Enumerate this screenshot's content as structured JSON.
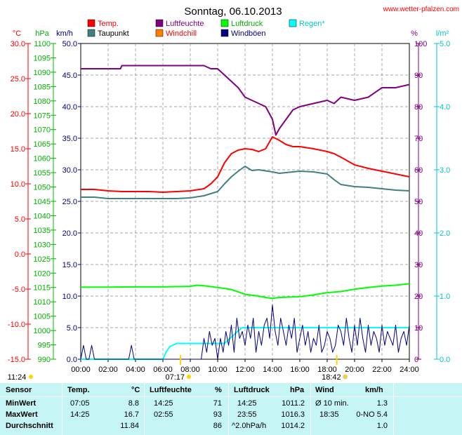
{
  "header": {
    "title": "Sonntag, 06.10.2013",
    "site": "www.wetter-pfalzen.com"
  },
  "legend": [
    {
      "label": "Temp.",
      "color": "#ff0000"
    },
    {
      "label": "Luftfeuchte",
      "color": "#800080"
    },
    {
      "label": "Luftdruck",
      "color": "#00ff00"
    },
    {
      "label": "Regen*",
      "color": "#00ffff"
    },
    {
      "label": "Taupunkt",
      "color": "#408080"
    },
    {
      "label": "Windchill",
      "color": "#ff8000"
    },
    {
      "label": "Windböen",
      "color": "#000080"
    }
  ],
  "axes": {
    "units": {
      "temp": "°C",
      "pressure": "hPa",
      "wind": "km/h",
      "humidity": "%",
      "rain": "l/m²"
    },
    "temp_ticks": [
      "30.0",
      "25.0",
      "20.0",
      "15.0",
      "10.0",
      "5.0",
      "0.0",
      "-5.0",
      "-10.0",
      "-15.0"
    ],
    "pressure_ticks": [
      "1100",
      "1095",
      "1090",
      "1085",
      "1080",
      "1075",
      "1070",
      "1065",
      "1060",
      "1055",
      "1050",
      "1045",
      "1040",
      "1035",
      "1030",
      "1025",
      "1020",
      "1015",
      "1010",
      "1005",
      "1000",
      "995",
      "990"
    ],
    "wind_ticks": [
      "50.0",
      "45.0",
      "40.0",
      "35.0",
      "30.0",
      "25.0",
      "20.0",
      "15.0",
      "10.0",
      "5.0",
      "0.0"
    ],
    "humidity_ticks": [
      "100",
      "90",
      "80",
      "70",
      "60",
      "50",
      "40",
      "30",
      "20",
      "10",
      "0"
    ],
    "rain_ticks": [
      "5.0",
      "4.0",
      "3.0",
      "2.0",
      "1.0",
      "0.0"
    ],
    "time_ticks": [
      "00:00",
      "02:00",
      "04:00",
      "06:00",
      "08:00",
      "10:00",
      "12:00",
      "14:00",
      "16:00",
      "18:00",
      "20:00",
      "22:00",
      "24:00"
    ],
    "sunrise": "07:17",
    "sunset": "18:42",
    "moon": "11:24"
  },
  "chart_data": {
    "type": "line",
    "x_unit": "hours",
    "xlim": [
      0,
      24
    ],
    "series": [
      {
        "name": "Temp.",
        "axis": "temp",
        "color": "#ff0000",
        "x": [
          0,
          1,
          2,
          3,
          4,
          5,
          6,
          7,
          8,
          9,
          9.5,
          10,
          10.5,
          11,
          11.5,
          12,
          12.5,
          13,
          13.5,
          14,
          14.5,
          15,
          15.5,
          16,
          17,
          18,
          18.5,
          19,
          20,
          21,
          22,
          23,
          24
        ],
        "y": [
          9.2,
          9.2,
          9.0,
          8.9,
          8.9,
          8.9,
          8.8,
          8.9,
          9.0,
          9.3,
          10.0,
          11.0,
          13.0,
          14.3,
          14.8,
          15.0,
          14.9,
          14.6,
          15.0,
          16.7,
          16.2,
          15.6,
          15.3,
          15.3,
          15.0,
          14.6,
          14.3,
          13.8,
          12.7,
          12.2,
          11.8,
          11.4,
          11.0
        ]
      },
      {
        "name": "Taupunkt",
        "axis": "temp",
        "color": "#408080",
        "x": [
          0,
          1,
          2,
          3,
          4,
          5,
          6,
          7,
          8,
          9,
          10,
          10.5,
          11,
          11.5,
          12,
          12.5,
          13,
          14,
          14.5,
          15,
          16,
          17,
          18,
          18.5,
          19,
          20,
          21,
          22,
          23,
          24
        ],
        "y": [
          8.1,
          8.1,
          7.9,
          7.9,
          7.9,
          7.9,
          7.9,
          7.9,
          8.0,
          8.3,
          8.9,
          10.0,
          11.0,
          11.8,
          12.5,
          11.9,
          12.0,
          11.7,
          11.5,
          11.6,
          11.8,
          11.7,
          11.4,
          10.6,
          9.9,
          9.6,
          9.5,
          9.3,
          9.1,
          9.0
        ]
      },
      {
        "name": "Luftfeuchte",
        "axis": "humidity",
        "color": "#800080",
        "x": [
          0,
          1,
          2,
          2.9,
          3,
          5,
          7,
          8,
          9,
          9.5,
          10,
          10.5,
          11,
          11.5,
          12,
          12.5,
          13,
          13.5,
          14,
          14.25,
          14.5,
          15,
          15.5,
          16,
          17,
          18,
          18.5,
          19,
          20,
          21,
          22,
          23,
          24
        ],
        "y": [
          92,
          92,
          92,
          92,
          93,
          93,
          93,
          93,
          93,
          92,
          92,
          90,
          88,
          86,
          83,
          82,
          81,
          80,
          76,
          71,
          73,
          76,
          79,
          80,
          81,
          82,
          81,
          83,
          82,
          83,
          86,
          86,
          87
        ]
      },
      {
        "name": "Luftdruck",
        "axis": "pressure",
        "color": "#00ff00",
        "x": [
          0,
          2,
          4,
          6,
          8,
          8.5,
          9,
          10,
          11,
          12,
          13,
          13.5,
          14,
          14.5,
          15,
          16,
          17,
          18,
          19,
          20,
          21,
          22,
          23,
          24
        ],
        "y": [
          1015.1,
          1015.1,
          1015.2,
          1015.2,
          1015.4,
          1015.8,
          1015.6,
          1015.0,
          1014.3,
          1012.6,
          1012.0,
          1011.5,
          1011.2,
          1011.5,
          1011.6,
          1011.8,
          1012.4,
          1013.2,
          1013.6,
          1014.4,
          1015.0,
          1015.5,
          1015.8,
          1016.3
        ]
      },
      {
        "name": "Regen*",
        "axis": "rain",
        "color": "#00ffff",
        "x": [
          0,
          6,
          6.2,
          6.5,
          7,
          7.5,
          8,
          9,
          10,
          10.5,
          11,
          11.5,
          11.8,
          12,
          12.5,
          24
        ],
        "y": [
          0,
          0,
          0.1,
          0.2,
          0.25,
          0.25,
          0.25,
          0.25,
          0.25,
          0.25,
          0.35,
          0.45,
          0.5,
          0.5,
          0.5,
          0.5
        ]
      },
      {
        "name": "Windböen",
        "axis": "wind",
        "color": "#000080",
        "x": [
          0,
          0.2,
          0.4,
          0.6,
          0.8,
          1.0,
          1.2,
          3.5,
          3.7,
          3.9,
          4.1,
          8.8,
          9.0,
          9.2,
          9.4,
          9.6,
          9.8,
          10.0,
          10.2,
          10.4,
          10.6,
          10.8,
          11.0,
          11.2,
          11.4,
          11.6,
          11.8,
          12.0,
          12.2,
          12.4,
          12.6,
          12.8,
          13.0,
          13.2,
          13.4,
          13.6,
          13.8,
          14.0,
          14.2,
          14.4,
          14.6,
          14.8,
          15.0,
          15.2,
          15.4,
          15.6,
          15.8,
          16.0,
          16.2,
          16.4,
          16.6,
          16.8,
          17.0,
          17.2,
          17.4,
          17.6,
          17.8,
          18.0,
          18.2,
          18.4,
          18.6,
          18.8,
          19.0,
          19.2,
          19.4,
          19.6,
          19.8,
          20.0,
          20.2,
          20.4,
          20.6,
          20.8,
          21.0,
          21.2,
          21.4,
          21.6,
          21.8,
          22.0,
          22.2,
          22.4,
          22.6,
          22.8,
          23.0,
          23.2,
          23.4,
          23.6,
          23.8,
          24.0
        ],
        "y": [
          0,
          2.2,
          0,
          0,
          2.2,
          0,
          0,
          0,
          2.2,
          0,
          0,
          0,
          3.3,
          1.1,
          4.4,
          2.2,
          3.3,
          0,
          3.3,
          1.1,
          4.4,
          2.2,
          5.4,
          1.1,
          6.5,
          3.3,
          4.4,
          2.2,
          5.4,
          3.3,
          6.5,
          1.1,
          4.4,
          2.2,
          5.4,
          6.5,
          3.3,
          8.6,
          4.4,
          2.2,
          6.5,
          4.4,
          2.2,
          5.4,
          3.3,
          6.5,
          1.1,
          3.3,
          5.4,
          2.2,
          4.4,
          1.1,
          3.3,
          2.2,
          5.4,
          1.1,
          2.2,
          4.4,
          3.3,
          1.1,
          2.2,
          5.4,
          4.4,
          2.2,
          6.5,
          3.3,
          1.1,
          5.4,
          2.2,
          6.5,
          3.3,
          1.1,
          5.4,
          2.2,
          4.4,
          3.3,
          1.1,
          5.4,
          2.2,
          4.4,
          3.3,
          2.2,
          5.4,
          1.1,
          3.3,
          4.4,
          2.2,
          5.4
        ]
      }
    ],
    "ylims": {
      "temp": [
        -15,
        30
      ],
      "pressure": [
        990,
        1100
      ],
      "wind": [
        0,
        50
      ],
      "humidity": [
        0,
        100
      ],
      "rain": [
        0,
        5
      ]
    },
    "grid": true
  },
  "table": {
    "headers": [
      "Sensor",
      "Temp.",
      "°C",
      "Luftfeuchte",
      "%",
      "Luftdruck",
      "hPa",
      "Wind",
      "km/h"
    ],
    "rows": [
      {
        "label": "MinWert",
        "t_time": "07:05",
        "t_val": "8.8",
        "h_time": "14:25",
        "h_val": "71",
        "p_time": "14:25",
        "p_val": "1011.2",
        "w_time": "Ø 10 min.",
        "w_val": "1.3"
      },
      {
        "label": "MaxWert",
        "t_time": "14:25",
        "t_val": "16.7",
        "h_time": "02:55",
        "h_val": "93",
        "p_time": "23:55",
        "p_val": "1016.3",
        "w_time": "18:35",
        "w_val": "0-NO 5.4"
      },
      {
        "label": "Durchschnitt",
        "t_time": "",
        "t_val": "11.84",
        "h_time": "",
        "h_val": "86",
        "p_time": "^2.0hPa/h",
        "p_val": "1014.2",
        "w_time": "",
        "w_val": "1.0"
      }
    ]
  }
}
